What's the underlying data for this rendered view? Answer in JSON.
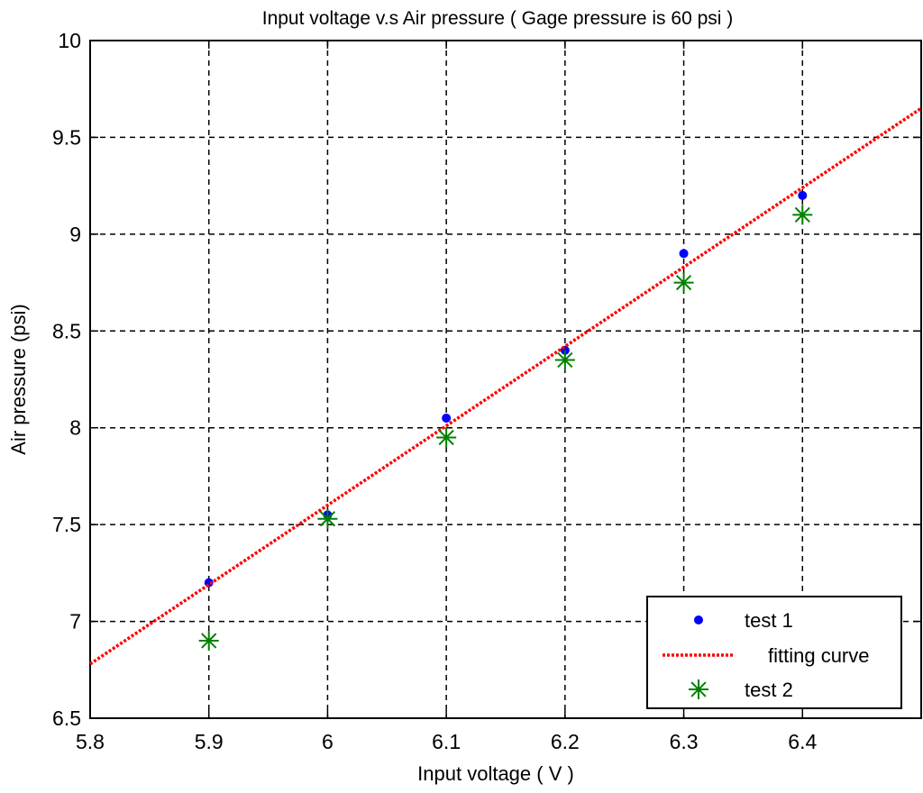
{
  "chart_data": {
    "type": "scatter",
    "title": "Input voltage v.s Air pressure ( Gage pressure is 60 psi )",
    "xlabel": "Input voltage ( V )",
    "ylabel": "Air pressure (psi)",
    "xlim": [
      5.8,
      6.5
    ],
    "ylim": [
      6.5,
      10
    ],
    "xticks": [
      "5.8",
      "5.9",
      "6",
      "6.1",
      "6.2",
      "6.3",
      "6.4"
    ],
    "yticks": [
      "6.5",
      "7",
      "7.5",
      "8",
      "8.5",
      "9",
      "9.5",
      "10"
    ],
    "grid": true,
    "legend_position": "bottom-right",
    "series": [
      {
        "name": "test 1",
        "marker": "dot",
        "color": "#0000ff",
        "x": [
          5.9,
          6.0,
          6.1,
          6.2,
          6.3,
          6.4
        ],
        "y": [
          7.2,
          7.55,
          8.05,
          8.4,
          8.9,
          9.2
        ]
      },
      {
        "name": "fitting curve",
        "line": "dotted",
        "color": "#ff0000",
        "x": [
          5.8,
          6.5
        ],
        "y": [
          6.78,
          9.65
        ]
      },
      {
        "name": "test 2",
        "marker": "asterisk",
        "color": "#008000",
        "x": [
          5.9,
          6.0,
          6.1,
          6.2,
          6.3,
          6.4
        ],
        "y": [
          6.9,
          7.53,
          7.95,
          8.35,
          8.75,
          9.1
        ]
      }
    ]
  }
}
